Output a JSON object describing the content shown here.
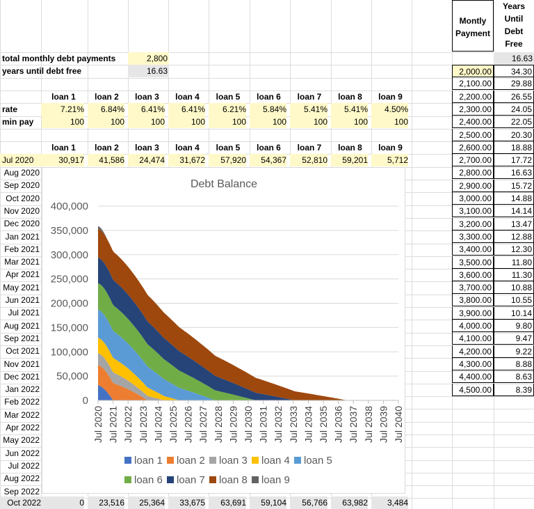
{
  "summary": {
    "total_label": "total monthly debt payments",
    "total_value": "2,800",
    "years_label": "years until debt free",
    "years_value": "16.63"
  },
  "loan_headers": [
    "loan 1",
    "loan 2",
    "loan 3",
    "loan 4",
    "loan 5",
    "loan 6",
    "loan 7",
    "loan 8",
    "loan 9"
  ],
  "rate_label": "rate",
  "rates": [
    "7.21%",
    "6.84%",
    "6.41%",
    "6.41%",
    "6.21%",
    "5.84%",
    "5.41%",
    "5.41%",
    "4.50%"
  ],
  "minpay_label": "min pay",
  "minpays": [
    "100",
    "100",
    "100",
    "100",
    "100",
    "100",
    "100",
    "100",
    "100"
  ],
  "first_row": {
    "date": "Jul 2020",
    "values": [
      "30,917",
      "41,586",
      "24,474",
      "31,672",
      "57,920",
      "54,367",
      "52,810",
      "59,201",
      "5,712"
    ]
  },
  "last_row": {
    "date": "Oct 2022",
    "values": [
      "0",
      "23,516",
      "25,364",
      "33,675",
      "63,691",
      "59,104",
      "56,766",
      "63,982",
      "3,484"
    ]
  },
  "month_labels": [
    "Aug 2020",
    "Sep 2020",
    "Oct 2020",
    "Nov 2020",
    "Dec 2020",
    "Jan 2021",
    "Feb 2021",
    "Mar 2021",
    "Apr 2021",
    "May 2021",
    "Jun 2021",
    "Jul 2021",
    "Aug 2021",
    "Sep 2021",
    "Oct 2021",
    "Nov 2021",
    "Dec 2021",
    "Jan 2022",
    "Feb 2022",
    "Mar 2022",
    "Apr 2022",
    "May 2022",
    "Jun 2022",
    "Jul 2022",
    "Aug 2022",
    "Sep 2022"
  ],
  "payment_table": {
    "header_payment": "Montly Payment",
    "header_years": "Years Until Debt Free",
    "top_value": "16.63",
    "rows": [
      [
        "2,000.00",
        "34.30"
      ],
      [
        "2,100.00",
        "29.88"
      ],
      [
        "2,200.00",
        "26.55"
      ],
      [
        "2,300.00",
        "24.05"
      ],
      [
        "2,400.00",
        "22.05"
      ],
      [
        "2,500.00",
        "20.30"
      ],
      [
        "2,600.00",
        "18.88"
      ],
      [
        "2,700.00",
        "17.72"
      ],
      [
        "2,800.00",
        "16.63"
      ],
      [
        "2,900.00",
        "15.72"
      ],
      [
        "3,000.00",
        "14.88"
      ],
      [
        "3,100.00",
        "14.14"
      ],
      [
        "3,200.00",
        "13.47"
      ],
      [
        "3,300.00",
        "12.88"
      ],
      [
        "3,400.00",
        "12.30"
      ],
      [
        "3,500.00",
        "11.80"
      ],
      [
        "3,600.00",
        "11.30"
      ],
      [
        "3,700.00",
        "10.88"
      ],
      [
        "3,800.00",
        "10.55"
      ],
      [
        "3,900.00",
        "10.14"
      ],
      [
        "4,000.00",
        "9.80"
      ],
      [
        "4,100.00",
        "9.47"
      ],
      [
        "4,200.00",
        "9.22"
      ],
      [
        "4,300.00",
        "8.88"
      ],
      [
        "4,400.00",
        "8.63"
      ],
      [
        "4,500.00",
        "8.39"
      ]
    ]
  },
  "chart_data": {
    "type": "area",
    "title": "Debt Balance",
    "ylim": [
      0,
      400000
    ],
    "yticks": [
      "0",
      "50,000",
      "100,000",
      "150,000",
      "200,000",
      "250,000",
      "300,000",
      "350,000",
      "400,000"
    ],
    "x_labels": [
      "Jul 2020",
      "Jul 2021",
      "Jul 2022",
      "Jul 2023",
      "Jul 2024",
      "Jul 2025",
      "Jul 2026",
      "Jul 2027",
      "Jul 2028",
      "Jul 2029",
      "Jul 2030",
      "Jul 2031",
      "Jul 2032",
      "Jul 2033",
      "Jul 2034",
      "Jul 2035",
      "Jul 2036",
      "Jul 2037",
      "Jul 2038",
      "Jul 2039",
      "Jul 2040"
    ],
    "legend_position": "bottom",
    "stacked": true,
    "series": [
      {
        "name": "loan 1",
        "color": "#4472c4",
        "start": 30917,
        "payoff_year": 1.0
      },
      {
        "name": "loan 2",
        "color": "#ed7d31",
        "start": 41586,
        "payoff_year": 3.3
      },
      {
        "name": "loan 3",
        "color": "#a5a5a5",
        "start": 24474,
        "payoff_year": 4.4
      },
      {
        "name": "loan 4",
        "color": "#ffc000",
        "start": 31672,
        "payoff_year": 5.4
      },
      {
        "name": "loan 5",
        "color": "#5b9bd5",
        "start": 57920,
        "payoff_year": 7.8
      },
      {
        "name": "loan 6",
        "color": "#70ad47",
        "start": 54367,
        "payoff_year": 10.5
      },
      {
        "name": "loan 7",
        "color": "#264478",
        "start": 52810,
        "payoff_year": 13.1
      },
      {
        "name": "loan 8",
        "color": "#9e480e",
        "start": 59201,
        "payoff_year": 16.6
      },
      {
        "name": "loan 9",
        "color": "#636363",
        "start": 5712,
        "payoff_year": 0.6
      }
    ]
  }
}
